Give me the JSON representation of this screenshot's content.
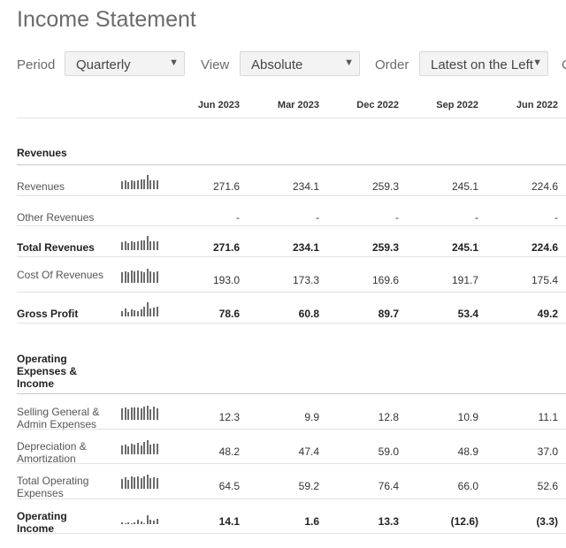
{
  "page": {
    "title": "Income Statement"
  },
  "controls": {
    "period_label": "Period",
    "period_value": "Quarterly",
    "view_label": "View",
    "view_value": "Absolute",
    "order_label": "Order",
    "order_value": "Latest on the Left",
    "next_label_clipped": "C"
  },
  "columns": [
    "Jun 2023",
    "Mar 2023",
    "Dec 2022",
    "Sep 2022",
    "Jun 2022"
  ],
  "sections": {
    "revenues": "Revenues",
    "operating": "Operating Expenses & Income"
  },
  "rows": [
    {
      "label": "Revenues",
      "bold": false,
      "values": [
        "271.6",
        "234.1",
        "259.3",
        "245.1",
        "224.6"
      ],
      "spark": [
        0.55,
        0.6,
        0.5,
        0.62,
        0.58,
        0.6,
        0.66,
        0.7,
        1.0,
        0.62,
        0.6,
        0.64
      ]
    },
    {
      "label": "Other Revenues",
      "bold": false,
      "values": [
        "-",
        "-",
        "-",
        "-",
        "-"
      ],
      "spark": []
    },
    {
      "label": "Total Revenues",
      "bold": true,
      "values": [
        "271.6",
        "234.1",
        "259.3",
        "245.1",
        "224.6"
      ],
      "spark": [
        0.55,
        0.6,
        0.5,
        0.62,
        0.58,
        0.6,
        0.66,
        0.7,
        1.0,
        0.62,
        0.6,
        0.64
      ]
    },
    {
      "label": "Cost Of Revenues",
      "bold": false,
      "values": [
        "193.0",
        "173.3",
        "169.6",
        "191.7",
        "175.4"
      ],
      "spark": [
        0.75,
        0.8,
        0.72,
        0.85,
        0.8,
        0.9,
        0.82,
        0.78,
        1.0,
        0.8,
        0.76,
        0.8
      ]
    },
    {
      "label": "Gross Profit",
      "bold": true,
      "values": [
        "78.6",
        "60.8",
        "89.7",
        "53.4",
        "49.2"
      ],
      "spark": [
        0.4,
        0.55,
        0.3,
        0.5,
        0.45,
        0.35,
        0.5,
        0.7,
        1.0,
        0.55,
        0.6,
        0.7
      ]
    },
    {
      "label": "Selling General & Admin Expenses",
      "bold": false,
      "values": [
        "12.3",
        "9.9",
        "12.8",
        "10.9",
        "11.1"
      ],
      "spark": [
        0.8,
        0.85,
        0.75,
        0.9,
        0.85,
        0.88,
        0.8,
        0.92,
        1.0,
        0.78,
        0.95,
        0.82
      ]
    },
    {
      "label": "Depreciation & Amortization",
      "bold": false,
      "values": [
        "48.2",
        "47.4",
        "59.0",
        "48.9",
        "37.0"
      ],
      "spark": [
        0.6,
        0.7,
        0.55,
        0.75,
        0.7,
        0.8,
        0.65,
        0.9,
        1.0,
        0.7,
        0.75,
        0.72
      ]
    },
    {
      "label": "Total Operating Expenses",
      "bold": false,
      "values": [
        "64.5",
        "59.2",
        "76.4",
        "66.0",
        "52.6"
      ],
      "spark": [
        0.7,
        0.8,
        0.65,
        0.85,
        0.8,
        0.9,
        0.75,
        0.88,
        1.0,
        0.78,
        0.82,
        0.76
      ]
    },
    {
      "label": "Operating Income",
      "bold": true,
      "values": [
        "14.1",
        "1.6",
        "13.3",
        "(12.6)",
        "(3.3)"
      ],
      "spark": [
        0.1,
        0.0,
        0.15,
        0.0,
        0.1,
        0.3,
        0.2,
        0.0,
        0.6,
        0.3,
        0.25,
        0.35
      ]
    }
  ],
  "colors": {
    "spark": "#6b6b6b",
    "select_bg": "#f3f3f3",
    "divider": "#e3e3e3"
  }
}
